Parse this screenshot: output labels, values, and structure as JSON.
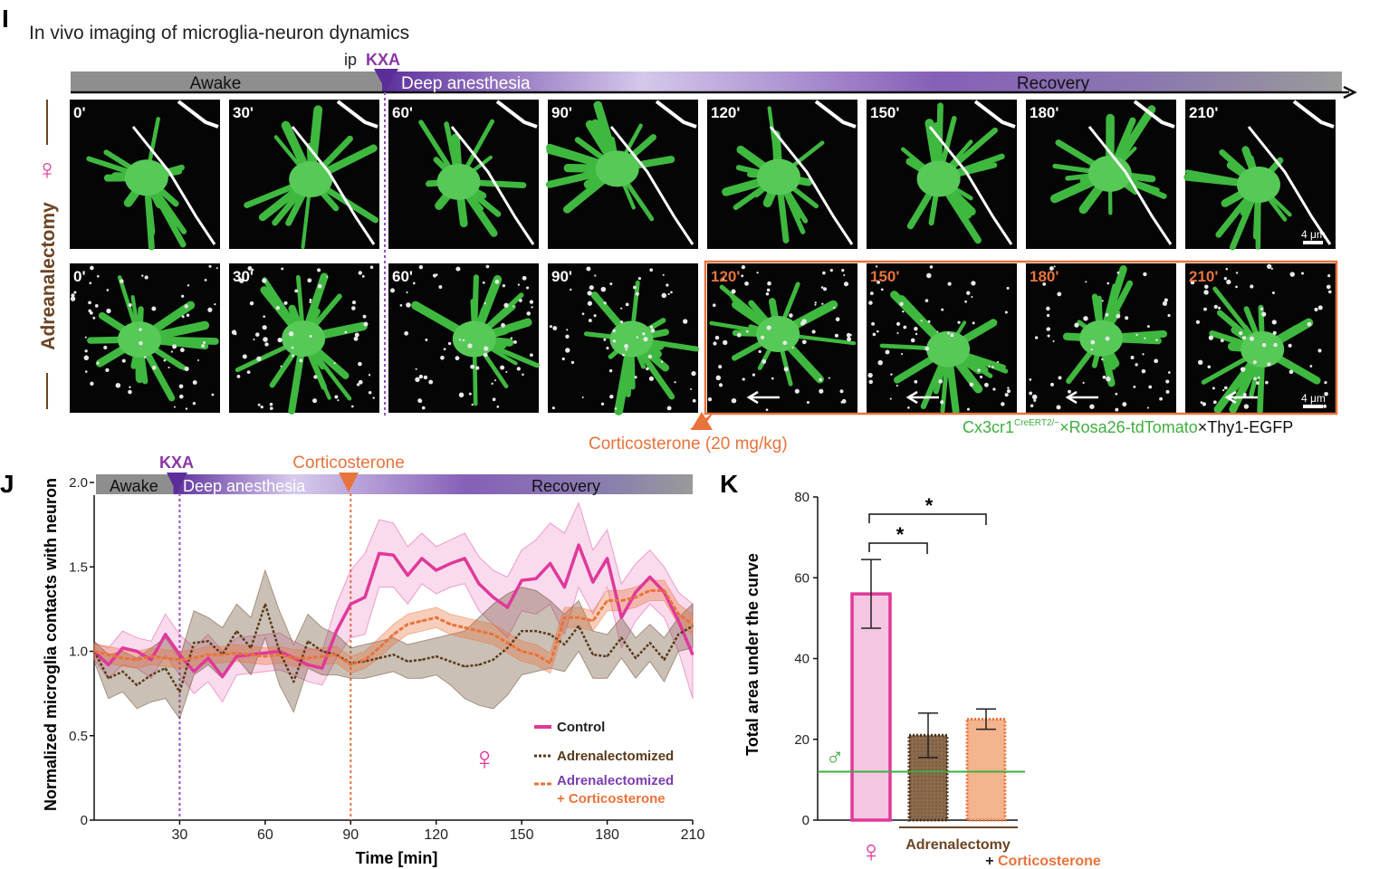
{
  "panel_i": {
    "letter": "I",
    "title": "In vivo imaging of microglia-neuron dynamics",
    "ip_label": "ip",
    "kxa_label": "KXA",
    "phases": [
      "Awake",
      "Deep anesthesia",
      "Recovery"
    ],
    "row_label_sex": "♀",
    "row_label_group": "Adreanalectomy",
    "times": [
      "0'",
      "30'",
      "60'",
      "90'",
      "120'",
      "150'",
      "180'",
      "210'"
    ],
    "scalebar": "4 μm",
    "cort_label": "Corticosterone (20 mg/kg)",
    "genotype": {
      "part1": "Cx3cr1",
      "sup": "CreERT2/−",
      "part2": "×Rosa26-tdTomato",
      "part3": "×Thy1-EGFP"
    },
    "colors": {
      "green": "#46b846",
      "orange": "#e8733b",
      "purple": "#8a35a6",
      "brown": "#6b4423",
      "gray_bar": "#8e8e8e"
    }
  },
  "panel_j": {
    "letter": "J",
    "kxa_label": "KXA",
    "cort_label": "Corticosterone",
    "phases": [
      "Awake",
      "Deep anesthesia",
      "Recovery"
    ],
    "sex_symbol": "♀",
    "legend": [
      {
        "label": "Control",
        "color": "#e0389a",
        "style": "solid"
      },
      {
        "label": "Adrenalectomized",
        "color": "#5a3a1a",
        "style": "dotted"
      },
      {
        "label": "Adrenalectomized",
        "color": "#7b3db0",
        "style": "dashed",
        "label2": "+ Corticosterone",
        "color2": "#e8733b"
      }
    ]
  },
  "panel_k": {
    "letter": "K",
    "sex_female": "♀",
    "sex_male": "♂",
    "group_label1": "Adrenalectomy",
    "group_label2_prefix": "+ ",
    "group_label2": "Corticosterone",
    "sig1": "*",
    "sig2": "*"
  },
  "chart_data": [
    {
      "type": "line",
      "xlabel": "Time [min]",
      "ylabel": "Normalized microglia contacts with neuron",
      "xlim": [
        0,
        210
      ],
      "ylim": [
        0,
        2.0
      ],
      "xticks": [
        30,
        60,
        90,
        120,
        150,
        180,
        210
      ],
      "yticks": [
        0,
        0.5,
        1.0,
        1.5,
        2.0
      ],
      "ytick_labels": [
        "0",
        "0.5",
        "1.0",
        "1.5",
        "2.0"
      ],
      "events": [
        {
          "x": 30,
          "label": "KXA"
        },
        {
          "x": 90,
          "label": "Corticosterone"
        }
      ],
      "series": [
        {
          "name": "Control",
          "color": "#e0389a",
          "x": [
            0,
            5,
            10,
            15,
            20,
            25,
            30,
            35,
            40,
            45,
            50,
            55,
            60,
            65,
            70,
            75,
            80,
            85,
            90,
            95,
            100,
            105,
            110,
            115,
            120,
            125,
            130,
            135,
            140,
            145,
            150,
            155,
            160,
            165,
            170,
            175,
            180,
            185,
            190,
            195,
            200,
            205,
            210
          ],
          "y": [
            1.0,
            0.92,
            1.02,
            1.0,
            0.95,
            1.1,
            0.98,
            0.88,
            0.96,
            0.85,
            0.97,
            0.98,
            0.99,
            1.0,
            0.96,
            0.92,
            0.9,
            1.12,
            1.28,
            1.32,
            1.58,
            1.57,
            1.45,
            1.55,
            1.48,
            1.52,
            1.55,
            1.4,
            1.32,
            1.26,
            1.42,
            1.43,
            1.52,
            1.38,
            1.63,
            1.41,
            1.55,
            1.2,
            1.35,
            1.44,
            1.35,
            1.18,
            0.98
          ],
          "upper": [
            1.05,
            1.02,
            1.12,
            1.08,
            1.06,
            1.22,
            1.1,
            1.02,
            1.1,
            1.0,
            1.08,
            1.09,
            1.1,
            1.11,
            1.06,
            1.02,
            1.0,
            1.28,
            1.48,
            1.58,
            1.78,
            1.76,
            1.62,
            1.7,
            1.62,
            1.66,
            1.7,
            1.56,
            1.48,
            1.44,
            1.6,
            1.66,
            1.76,
            1.7,
            1.88,
            1.6,
            1.72,
            1.4,
            1.52,
            1.6,
            1.5,
            1.35,
            1.28
          ],
          "lower": [
            0.95,
            0.84,
            0.92,
            0.9,
            0.84,
            0.98,
            0.86,
            0.75,
            0.82,
            0.7,
            0.86,
            0.87,
            0.88,
            0.89,
            0.86,
            0.82,
            0.8,
            0.96,
            1.08,
            1.1,
            1.38,
            1.38,
            1.28,
            1.4,
            1.34,
            1.38,
            1.4,
            1.24,
            1.16,
            1.08,
            1.24,
            1.22,
            1.28,
            1.1,
            1.38,
            1.22,
            1.38,
            1.02,
            1.18,
            1.28,
            1.2,
            1.0,
            0.72
          ]
        },
        {
          "name": "Adrenalectomized",
          "color": "#5a3a1a",
          "x": [
            0,
            5,
            10,
            15,
            20,
            25,
            30,
            35,
            40,
            45,
            50,
            55,
            60,
            65,
            70,
            75,
            80,
            85,
            90,
            95,
            100,
            105,
            110,
            115,
            120,
            125,
            130,
            135,
            140,
            145,
            150,
            155,
            160,
            165,
            170,
            175,
            180,
            185,
            190,
            195,
            200,
            205,
            210
          ],
          "y": [
            1.0,
            0.84,
            0.88,
            0.8,
            0.86,
            0.9,
            0.76,
            1.05,
            1.06,
            0.98,
            1.12,
            1.02,
            1.28,
            1.0,
            0.82,
            1.06,
            1.0,
            0.98,
            0.93,
            0.94,
            0.96,
            0.98,
            0.94,
            0.95,
            0.97,
            0.94,
            0.91,
            0.92,
            0.95,
            1.02,
            1.12,
            1.12,
            1.1,
            1.04,
            1.15,
            0.98,
            0.97,
            1.08,
            0.96,
            1.05,
            0.95,
            1.1,
            1.15
          ],
          "upper": [
            1.06,
            0.98,
            1.0,
            0.96,
            1.02,
            1.08,
            0.96,
            1.24,
            1.2,
            1.14,
            1.28,
            1.2,
            1.48,
            1.24,
            1.04,
            1.22,
            1.14,
            1.1,
            1.02,
            1.04,
            1.06,
            1.08,
            1.04,
            1.06,
            1.08,
            1.1,
            1.12,
            1.2,
            1.28,
            1.34,
            1.38,
            1.36,
            1.3,
            1.22,
            1.3,
            1.12,
            1.1,
            1.2,
            1.08,
            1.16,
            1.08,
            1.2,
            1.28
          ],
          "lower": [
            0.94,
            0.72,
            0.76,
            0.66,
            0.7,
            0.72,
            0.6,
            0.86,
            0.92,
            0.84,
            0.96,
            0.86,
            1.08,
            0.8,
            0.64,
            0.9,
            0.86,
            0.86,
            0.84,
            0.84,
            0.86,
            0.88,
            0.84,
            0.84,
            0.86,
            0.8,
            0.72,
            0.68,
            0.66,
            0.74,
            0.86,
            0.88,
            0.9,
            0.88,
            1.0,
            0.84,
            0.84,
            0.96,
            0.84,
            0.94,
            0.82,
            1.0,
            1.02
          ]
        },
        {
          "name": "Adrenalectomized + Corticosterone",
          "color": "#e8733b",
          "x": [
            0,
            5,
            10,
            15,
            20,
            25,
            30,
            35,
            40,
            45,
            50,
            55,
            60,
            65,
            70,
            75,
            80,
            85,
            90,
            95,
            100,
            105,
            110,
            115,
            120,
            125,
            130,
            135,
            140,
            145,
            150,
            155,
            160,
            165,
            170,
            175,
            180,
            185,
            190,
            195,
            200,
            205,
            210
          ],
          "y": [
            1.0,
            0.98,
            0.96,
            0.95,
            0.97,
            0.96,
            0.95,
            0.96,
            0.98,
            0.98,
            0.99,
            0.98,
            0.97,
            0.98,
            0.96,
            0.96,
            0.97,
            0.98,
            0.92,
            0.95,
            1.02,
            1.1,
            1.16,
            1.18,
            1.2,
            1.16,
            1.14,
            1.12,
            1.1,
            1.05,
            1.0,
            0.98,
            0.93,
            1.2,
            1.2,
            1.18,
            1.3,
            1.3,
            1.32,
            1.36,
            1.36,
            1.22,
            1.16
          ],
          "upper": [
            1.04,
            1.03,
            1.01,
            1.0,
            1.02,
            1.01,
            1.0,
            1.01,
            1.03,
            1.03,
            1.04,
            1.03,
            1.02,
            1.03,
            1.01,
            1.01,
            1.02,
            1.03,
            0.97,
            1.0,
            1.08,
            1.16,
            1.22,
            1.24,
            1.26,
            1.22,
            1.2,
            1.18,
            1.16,
            1.11,
            1.06,
            1.04,
            0.99,
            1.26,
            1.26,
            1.24,
            1.36,
            1.36,
            1.38,
            1.42,
            1.42,
            1.28,
            1.22
          ],
          "lower": [
            0.96,
            0.93,
            0.91,
            0.9,
            0.92,
            0.91,
            0.9,
            0.91,
            0.93,
            0.93,
            0.94,
            0.93,
            0.92,
            0.93,
            0.91,
            0.91,
            0.92,
            0.93,
            0.87,
            0.9,
            0.96,
            1.04,
            1.1,
            1.12,
            1.14,
            1.1,
            1.08,
            1.06,
            1.04,
            0.99,
            0.94,
            0.92,
            0.87,
            1.14,
            1.14,
            1.12,
            1.24,
            1.24,
            1.26,
            1.3,
            1.3,
            1.16,
            1.1
          ]
        }
      ]
    },
    {
      "type": "bar",
      "ylabel": "Total area under the curve",
      "ylim": [
        0,
        80
      ],
      "yticks": [
        0,
        20,
        40,
        60,
        80
      ],
      "categories": [
        "Control",
        "Adrenalectomy",
        "Adrenalectomy + Corticosterone"
      ],
      "values": [
        56,
        21,
        25
      ],
      "errors": [
        8.5,
        5.5,
        2.5
      ],
      "fills": [
        "#f4c6e2",
        "#8b6a4e",
        "#f3b48e"
      ],
      "strokes": [
        "#e0389a",
        "#4a3018",
        "#e8733b"
      ],
      "male_reference": 12
    }
  ]
}
